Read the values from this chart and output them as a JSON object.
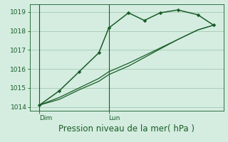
{
  "background_color": "#d4ede0",
  "line_color": "#1a5c28",
  "grid_color": "#aacfb8",
  "vline_color": "#7aaa88",
  "xlabel": "Pression niveau de la mer( hPa )",
  "ylim": [
    1013.8,
    1019.4
  ],
  "yticks": [
    1014,
    1015,
    1016,
    1017,
    1018,
    1019
  ],
  "day_labels": [
    "Dim",
    "Lun"
  ],
  "day_positions": [
    0.5,
    4.0
  ],
  "vline_positions": [
    0.5,
    4.0
  ],
  "series1_x": [
    0.5,
    1.5,
    2.5,
    3.5,
    4.0,
    5.0,
    5.8,
    6.6,
    7.5,
    8.5,
    9.3
  ],
  "series1_y": [
    1014.1,
    1014.85,
    1015.85,
    1016.85,
    1018.15,
    1018.95,
    1018.55,
    1018.95,
    1019.1,
    1018.85,
    1018.3
  ],
  "series2_x": [
    0.5,
    1.5,
    2.5,
    3.5,
    4.0,
    5.0,
    5.8,
    6.6,
    7.5,
    8.5,
    9.3
  ],
  "series2_y": [
    1014.1,
    1014.5,
    1015.0,
    1015.5,
    1015.85,
    1016.3,
    1016.7,
    1017.1,
    1017.55,
    1018.05,
    1018.3
  ],
  "series3_x": [
    0.5,
    1.5,
    2.5,
    3.5,
    4.0,
    5.0,
    5.8,
    6.6,
    7.5,
    8.5,
    9.3
  ],
  "series3_y": [
    1014.1,
    1014.4,
    1014.9,
    1015.35,
    1015.7,
    1016.15,
    1016.6,
    1017.05,
    1017.55,
    1018.05,
    1018.3
  ],
  "xlim": [
    0.0,
    9.8
  ],
  "xlabel_fontsize": 8.5,
  "tick_fontsize": 6.5,
  "marker": "D",
  "markersize": 2.8,
  "linewidth1": 1.1,
  "linewidth2": 0.9
}
